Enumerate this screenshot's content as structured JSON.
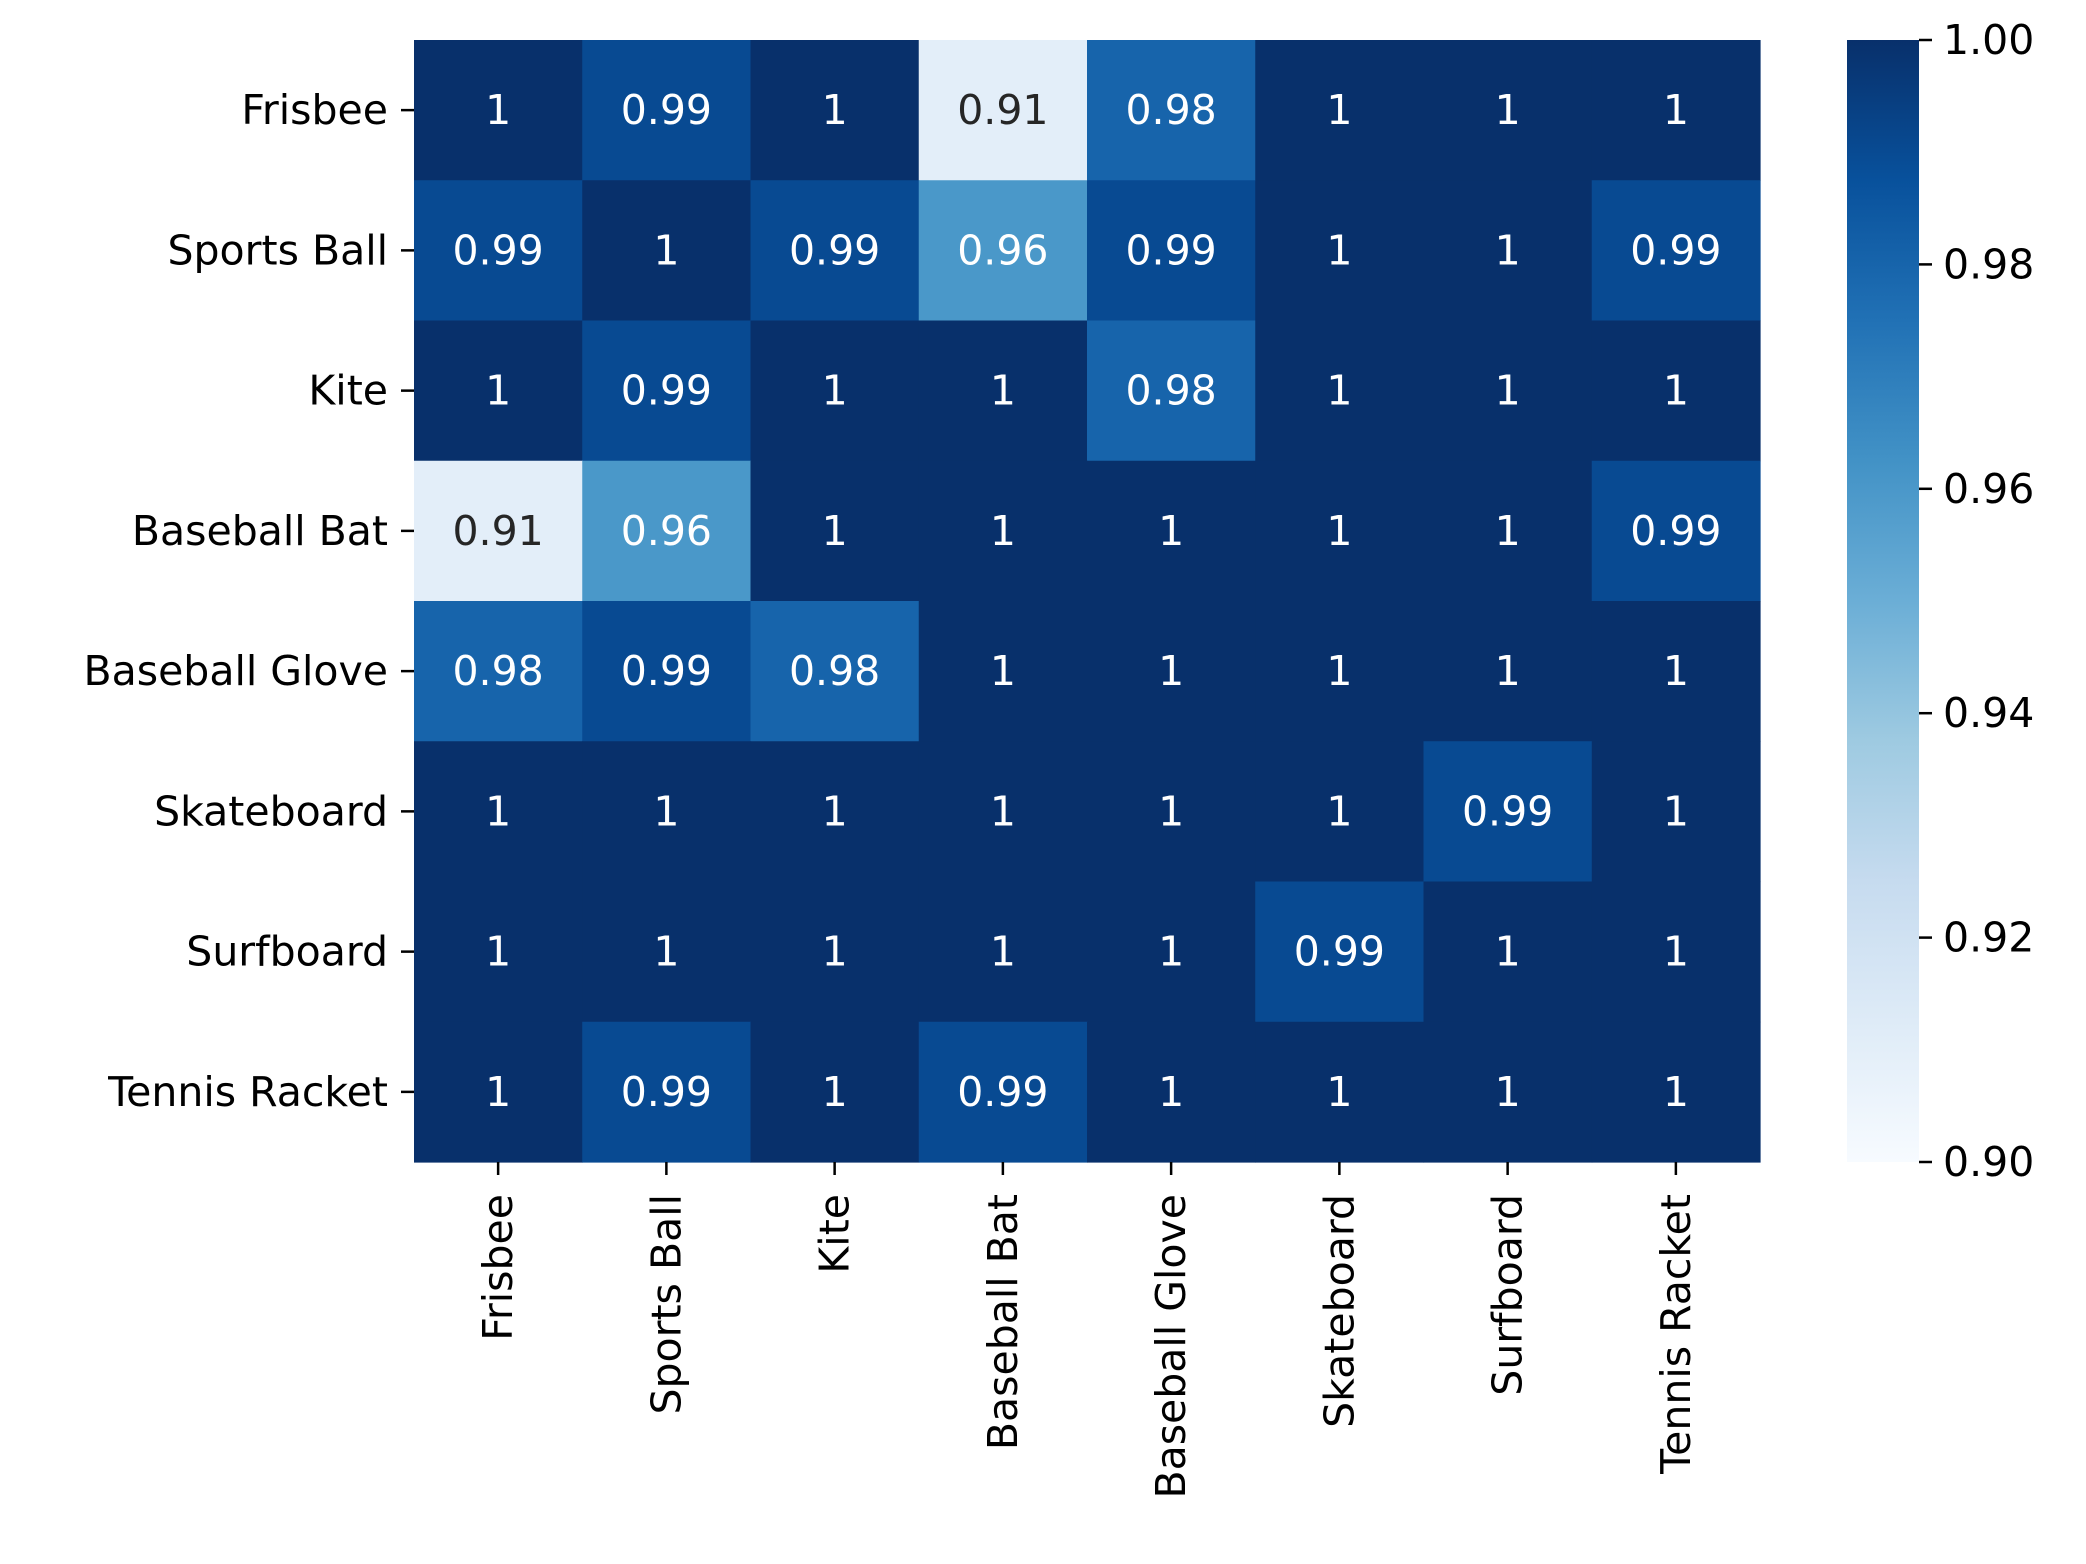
{
  "chart_data": {
    "type": "heatmap",
    "title": "",
    "xlabel": "",
    "ylabel": "",
    "categories_x": [
      "Frisbee",
      "Sports Ball",
      "Kite",
      "Baseball Bat",
      "Baseball Glove",
      "Skateboard",
      "Surfboard",
      "Tennis Racket"
    ],
    "categories_y": [
      "Frisbee",
      "Sports Ball",
      "Kite",
      "Baseball Bat",
      "Baseball Glove",
      "Skateboard",
      "Surfboard",
      "Tennis Racket"
    ],
    "values": [
      [
        1.0,
        0.99,
        1.0,
        0.91,
        0.98,
        1.0,
        1.0,
        1.0
      ],
      [
        0.99,
        1.0,
        0.99,
        0.96,
        0.99,
        1.0,
        1.0,
        0.99
      ],
      [
        1.0,
        0.99,
        1.0,
        1.0,
        0.98,
        1.0,
        1.0,
        1.0
      ],
      [
        0.91,
        0.96,
        1.0,
        1.0,
        1.0,
        1.0,
        1.0,
        0.99
      ],
      [
        0.98,
        0.99,
        0.98,
        1.0,
        1.0,
        1.0,
        1.0,
        1.0
      ],
      [
        1.0,
        1.0,
        1.0,
        1.0,
        1.0,
        1.0,
        0.99,
        1.0
      ],
      [
        1.0,
        1.0,
        1.0,
        1.0,
        1.0,
        0.99,
        1.0,
        1.0
      ],
      [
        1.0,
        0.99,
        1.0,
        0.99,
        1.0,
        1.0,
        1.0,
        1.0
      ]
    ],
    "annotations": [
      [
        "1",
        "0.99",
        "1",
        "0.91",
        "0.98",
        "1",
        "1",
        "1"
      ],
      [
        "0.99",
        "1",
        "0.99",
        "0.96",
        "0.99",
        "1",
        "1",
        "0.99"
      ],
      [
        "1",
        "0.99",
        "1",
        "1",
        "0.98",
        "1",
        "1",
        "1"
      ],
      [
        "0.91",
        "0.96",
        "1",
        "1",
        "1",
        "1",
        "1",
        "0.99"
      ],
      [
        "0.98",
        "0.99",
        "0.98",
        "1",
        "1",
        "1",
        "1",
        "1"
      ],
      [
        "1",
        "1",
        "1",
        "1",
        "1",
        "1",
        "0.99",
        "1"
      ],
      [
        "1",
        "1",
        "1",
        "1",
        "1",
        "0.99",
        "1",
        "1"
      ],
      [
        "1",
        "0.99",
        "1",
        "0.99",
        "1",
        "1",
        "1",
        "1"
      ]
    ],
    "colorbar": {
      "vmin": 0.9,
      "vmax": 1.0,
      "ticks": [
        1.0,
        0.98,
        0.96,
        0.94,
        0.92,
        0.9
      ],
      "tick_labels": [
        "1.00",
        "0.98",
        "0.96",
        "0.94",
        "0.92",
        "0.90"
      ],
      "colormap": "Blues"
    },
    "colors": {
      "low": "#f7fbff",
      "high": "#08306b",
      "text_light": "#ffffff",
      "text_dark": "#262626"
    }
  }
}
